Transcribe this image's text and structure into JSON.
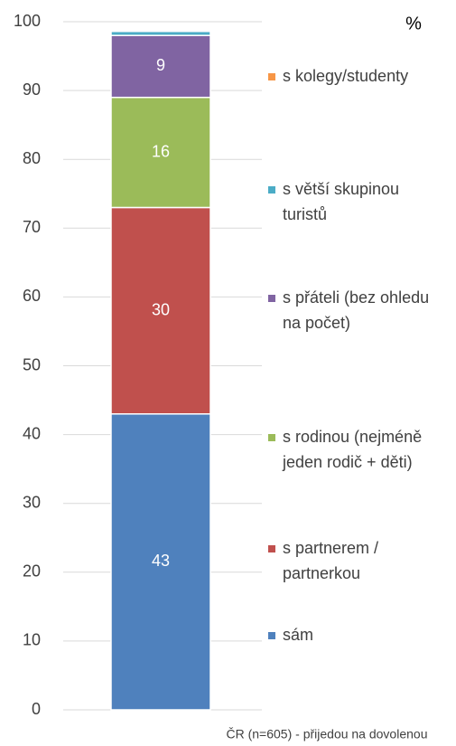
{
  "chart_data": {
    "type": "stacked_bar",
    "y_label": "%",
    "categories": [
      "ČR (n=605) - přijedou na dovolenou"
    ],
    "series": [
      {
        "name": "sám",
        "color": "#4f81bd",
        "values": [
          43
        ]
      },
      {
        "name": "s partnerem / partnerkou",
        "color": "#c0504d",
        "values": [
          30
        ]
      },
      {
        "name": "s rodinou (nejméně jeden rodič + děti)",
        "color": "#9bbb59",
        "values": [
          16
        ]
      },
      {
        "name": "s přáteli (bez ohledu na počet)",
        "color": "#8064a2",
        "values": [
          9
        ]
      },
      {
        "name": "s větší skupinou turistů",
        "color": "#4bacc6",
        "values": [
          0.6
        ]
      },
      {
        "name": "s kolegy/studenty",
        "color": "#f79646",
        "values": [
          0.1
        ]
      }
    ],
    "label_series": [
      0,
      1,
      2,
      3
    ],
    "ylim": [
      0,
      100
    ],
    "yticks": [
      0,
      10,
      20,
      30,
      40,
      50,
      60,
      70,
      80,
      90,
      100
    ],
    "grid": true,
    "legend": "right"
  }
}
